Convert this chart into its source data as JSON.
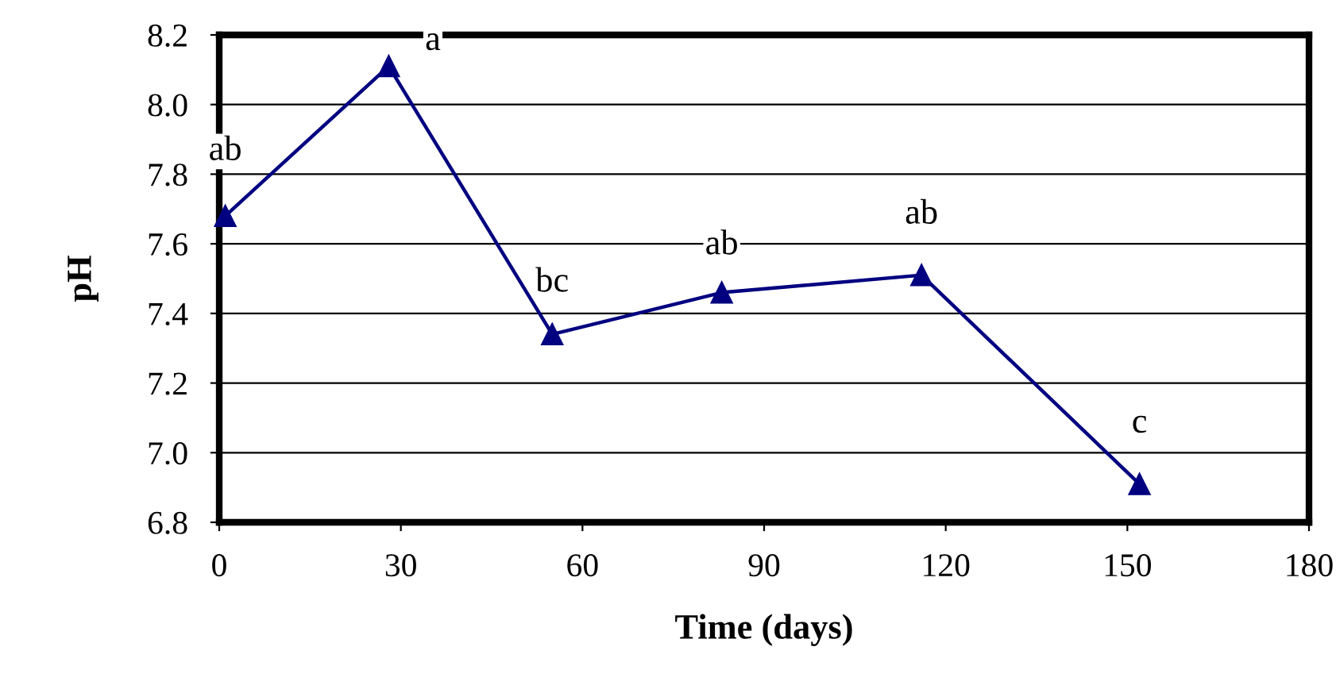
{
  "chart_data": {
    "type": "line",
    "xlabel": "Time (days)",
    "ylabel": "pH",
    "x": [
      1,
      28,
      55,
      83,
      116,
      152
    ],
    "series": [
      {
        "color": "#000080",
        "values": [
          7.68,
          8.11,
          7.34,
          7.46,
          7.51,
          6.91
        ]
      }
    ],
    "xlim": [
      0,
      180
    ],
    "xticks": [
      0,
      30,
      60,
      90,
      120,
      150,
      180
    ],
    "ylim": [
      6.8,
      8.2
    ],
    "yticks": [
      {
        "value": 6.8,
        "label": "6.8"
      },
      {
        "value": 7.0,
        "label": "7.0"
      },
      {
        "value": 7.2,
        "label": "7.2"
      },
      {
        "value": 7.4,
        "label": "7.4"
      },
      {
        "value": 7.6,
        "label": "7.6"
      },
      {
        "value": 7.8,
        "label": "7.8"
      },
      {
        "value": 8.0,
        "label": "8.0"
      },
      {
        "value": 8.2,
        "label": "8.2"
      }
    ],
    "grid": "y",
    "marker": "triangle",
    "line_style": "solid",
    "annotations": [
      {
        "text": "ab",
        "x": 1,
        "y": 7.68
      },
      {
        "text": "a",
        "x": 28,
        "y": 8.11
      },
      {
        "text": "bc",
        "x": 55,
        "y": 7.34
      },
      {
        "text": "ab",
        "x": 83,
        "y": 7.46
      },
      {
        "text": "ab",
        "x": 116,
        "y": 7.51
      },
      {
        "text": "c",
        "x": 152,
        "y": 6.91
      }
    ]
  }
}
